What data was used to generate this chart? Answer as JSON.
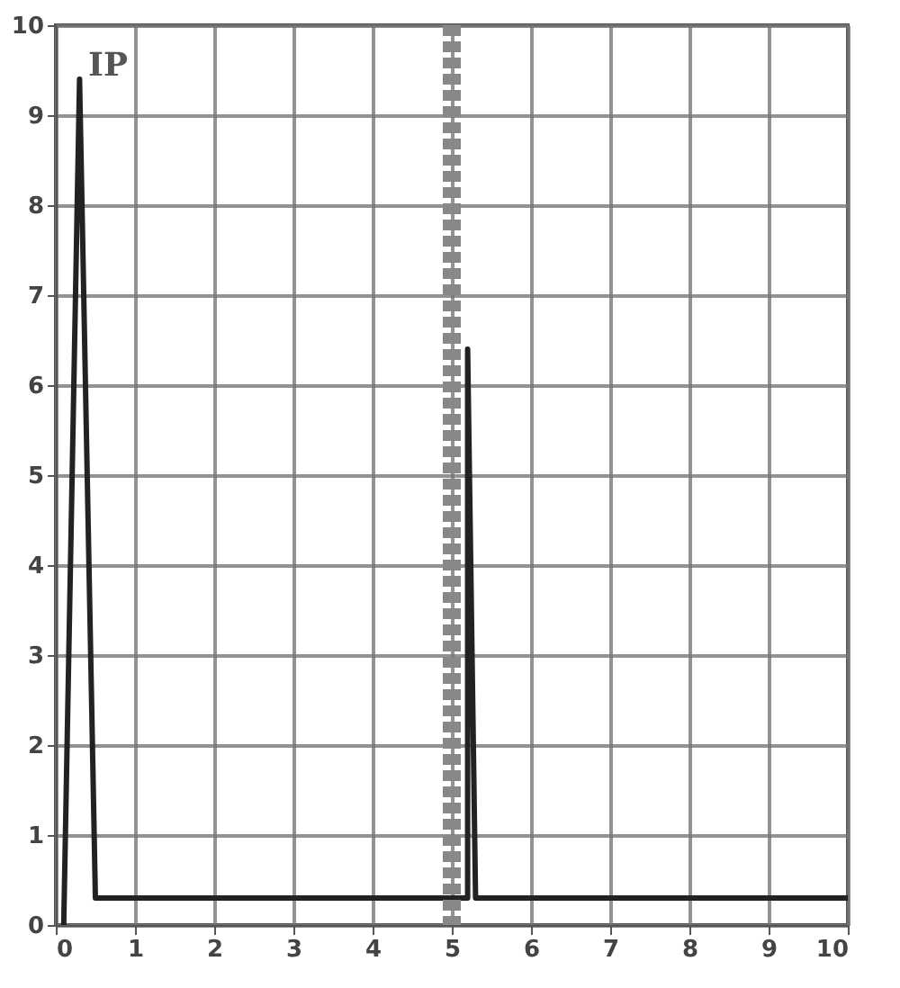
{
  "chart_data": {
    "type": "line",
    "x": [
      0.1,
      0.3,
      0.5,
      5.2,
      5.2,
      5.3,
      10
    ],
    "series": [
      {
        "color": "#222222",
        "values": [
          0,
          9.4,
          0.3,
          0.3,
          6.4,
          0.3,
          0.3
        ]
      }
    ],
    "xlim": [
      0,
      10
    ],
    "ylim": [
      0,
      10
    ],
    "xticks": [
      0,
      1,
      2,
      3,
      4,
      5,
      6,
      7,
      8,
      9,
      10
    ],
    "yticks": [
      0,
      1,
      2,
      3,
      4,
      5,
      6,
      7,
      8,
      9,
      10
    ],
    "grid": true,
    "legend": false,
    "marker": "none",
    "line_style": "solid",
    "ref_lines": [
      {
        "axis": "x",
        "value": 5,
        "color": "#888888",
        "line_style": "dashed"
      }
    ],
    "annotations": [
      "IP"
    ]
  }
}
